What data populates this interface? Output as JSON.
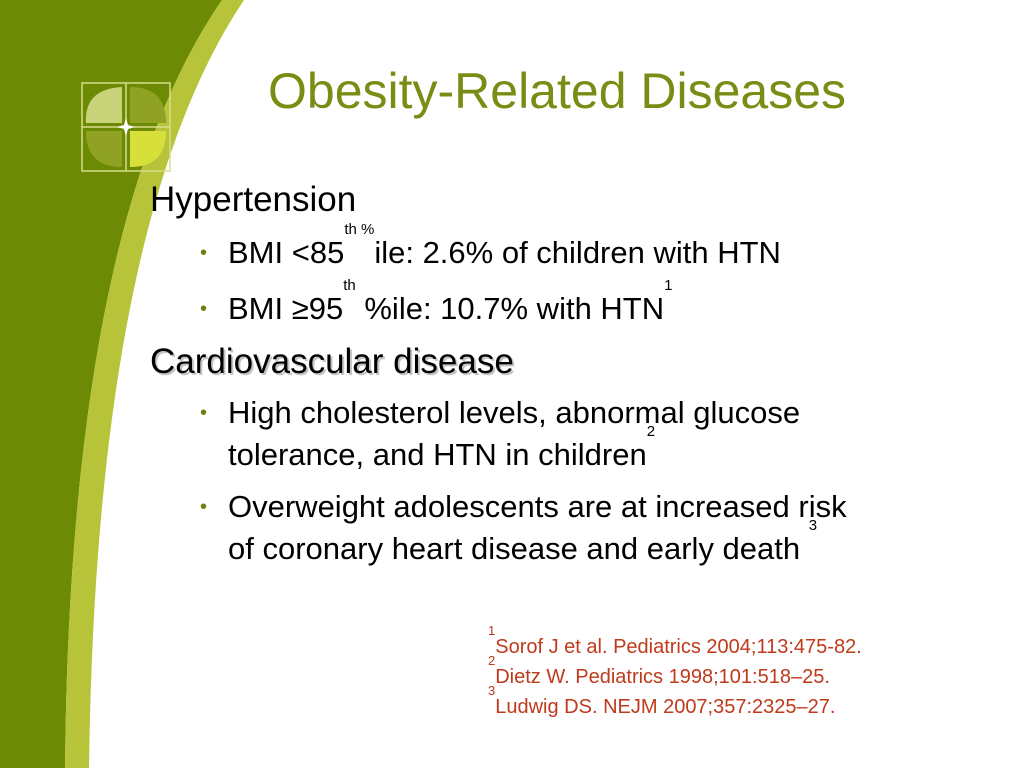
{
  "slide": {
    "title": "Obesity-Related Diseases",
    "sections": [
      {
        "heading": "Hypertension",
        "bullets": [
          {
            "pre": "BMI <85",
            "sup": "th %",
            "post": "ile:  2.6% of children with HTN"
          },
          {
            "pre": "BMI ≥95",
            "sup": "th",
            "post": " %ile: 10.7% with HTN",
            "ref": "1"
          }
        ]
      },
      {
        "heading": "Cardiovascular disease",
        "bullets": [
          {
            "line1": "High cholesterol levels, abnormal glucose",
            "line2": "tolerance, and HTN in children",
            "ref": "2"
          },
          {
            "line1": "Overweight adolescents are at increased risk",
            "line2": "of coronary heart disease and early death ",
            "ref": "3"
          }
        ]
      }
    ],
    "references": [
      {
        "num": "1",
        "text": "Sorof J et al. Pediatrics 2004;113:475-82."
      },
      {
        "num": "2",
        "text": "Dietz W. Pediatrics 1998;101:518–25."
      },
      {
        "num": "3",
        "text": "Ludwig DS. NEJM 2007;357:2325–27."
      }
    ]
  },
  "colors": {
    "title": "#7a8c14",
    "sidebar_dark": "#6d8a05",
    "sidebar_light": "#b7c43a",
    "reference_text": "#c0391b"
  },
  "icons": {
    "logo": "four-leaf-flower-logo",
    "bullet": "bullet-dot"
  }
}
